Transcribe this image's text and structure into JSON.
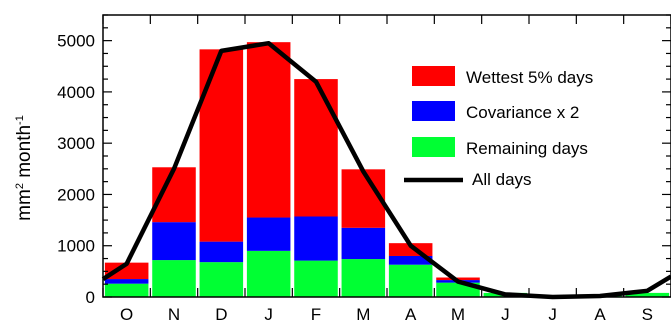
{
  "chart_data": {
    "type": "bar",
    "stacked": true,
    "categories": [
      "O",
      "N",
      "D",
      "J",
      "F",
      "M",
      "A",
      "M",
      "J",
      "J",
      "A",
      "S"
    ],
    "series": [
      {
        "name": "Remaining days",
        "color": "#00ff33",
        "values": [
          260,
          720,
          680,
          900,
          710,
          740,
          630,
          280,
          80,
          20,
          40,
          80
        ]
      },
      {
        "name": "Covariance x 2",
        "color": "#0000ff",
        "values": [
          90,
          740,
          400,
          650,
          860,
          610,
          170,
          50,
          0,
          0,
          0,
          0
        ]
      },
      {
        "name": "Wettest 5% days",
        "color": "#ff0000",
        "values": [
          320,
          1070,
          3750,
          3420,
          2680,
          1140,
          250,
          50,
          0,
          0,
          0,
          0
        ]
      }
    ],
    "line_series": {
      "name": "All days",
      "color": "#000000",
      "x": [
        -0.5,
        0,
        1,
        2,
        3,
        4,
        5,
        6,
        7,
        8,
        9,
        10,
        11,
        11.5
      ],
      "values": [
        350,
        650,
        2500,
        4800,
        4950,
        4200,
        2450,
        1000,
        300,
        50,
        0,
        20,
        120,
        400
      ]
    },
    "yticks": [
      0,
      1000,
      2000,
      3000,
      4000,
      5000
    ],
    "ylim": [
      0,
      5500
    ],
    "ylabel": "mm",
    "ylabel_sup1": "2",
    "ylabel_mid": " month",
    "ylabel_sup2": "-1",
    "legend_order": [
      "Wettest 5% days",
      "Covariance x 2",
      "Remaining days",
      "All days"
    ],
    "legend_position": "upper-right",
    "grid": false
  }
}
